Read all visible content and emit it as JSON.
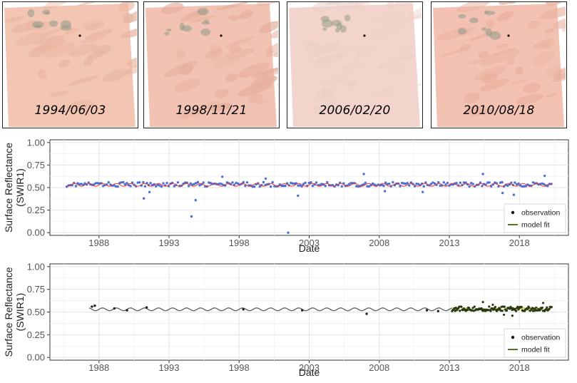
{
  "thumbnails": [
    {
      "date": "1994/06/03"
    },
    {
      "date": "1998/11/21"
    },
    {
      "date": "2006/02/20"
    },
    {
      "date": "2010/08/18"
    }
  ],
  "colors": {
    "observation_top": "#4a6fd6",
    "fit_top": "#d83a3a",
    "observation_bottom_early": "#222222",
    "observation_bottom_late": "#2a3a10",
    "fit_bottom": "#555555",
    "fit_bottom_late": "#c8c020",
    "legend_fit": "#3a6a10"
  },
  "chart_data": [
    {
      "type": "scatter",
      "xlabel": "Date",
      "ylabel_line1": "Surface Reflectance",
      "ylabel_line2": "(SWIR1)",
      "xlim": [
        1984.5,
        2021.5
      ],
      "ylim": [
        -0.03,
        1.03
      ],
      "x_ticks": [
        1988,
        1993,
        1998,
        2003,
        2008,
        2013,
        2018
      ],
      "x_tick_labels": [
        "1988",
        "1993",
        "1998",
        "2003",
        "2008",
        "2013",
        "2018"
      ],
      "y_ticks": [
        0.0,
        0.25,
        0.5,
        0.75,
        1.0
      ],
      "y_tick_labels": [
        "0.00",
        "0.25",
        "0.50",
        "0.75",
        "1.00"
      ],
      "grid": true,
      "legend": {
        "position": "bottom-right",
        "entries": [
          "observation",
          "model fit"
        ]
      },
      "observations": {
        "start": 1985.7,
        "end": 2020.3,
        "base": 0.535,
        "spread": 0.025
      },
      "outliers": [
        [
          1991.6,
          0.45
        ],
        [
          1991.2,
          0.38
        ],
        [
          1994.6,
          0.18
        ],
        [
          1994.9,
          0.36
        ],
        [
          1996.8,
          0.62
        ],
        [
          1999.9,
          0.6
        ],
        [
          2001.5,
          0.0
        ],
        [
          2002.2,
          0.41
        ],
        [
          2006.9,
          0.65
        ],
        [
          2015.4,
          0.65
        ],
        [
          2016.8,
          0.44
        ],
        [
          2017.6,
          0.42
        ],
        [
          2019.8,
          0.63
        ],
        [
          2008.4,
          0.46
        ],
        [
          2011.1,
          0.45
        ]
      ],
      "model_fit": {
        "mean": 0.53,
        "amplitude": 0.015,
        "period": 1.0
      }
    },
    {
      "type": "scatter",
      "xlabel": "Date",
      "ylabel_line1": "Surface Reflectance",
      "ylabel_line2": "(SWIR1)",
      "xlim": [
        1984.5,
        2021.5
      ],
      "ylim": [
        -0.03,
        1.03
      ],
      "x_ticks": [
        1988,
        1993,
        1998,
        2003,
        2008,
        2013,
        2018
      ],
      "x_tick_labels": [
        "1988",
        "1993",
        "1998",
        "2003",
        "2008",
        "2013",
        "2018"
      ],
      "y_ticks": [
        0.0,
        0.25,
        0.5,
        0.75,
        1.0
      ],
      "y_tick_labels": [
        "0.00",
        "0.25",
        "0.50",
        "0.75",
        "1.00"
      ],
      "grid": true,
      "legend": {
        "position": "bottom-right",
        "entries": [
          "observation",
          "model fit"
        ]
      },
      "sparse_observations": [
        [
          1987.5,
          0.56
        ],
        [
          1987.7,
          0.57
        ],
        [
          1989.1,
          0.54
        ],
        [
          1990.0,
          0.52
        ],
        [
          1991.4,
          0.55
        ],
        [
          1998.3,
          0.53
        ],
        [
          2002.5,
          0.52
        ],
        [
          2007.1,
          0.48
        ],
        [
          2011.4,
          0.52
        ],
        [
          2012.2,
          0.51
        ]
      ],
      "dense_observations": {
        "start": 2013.2,
        "end": 2020.3,
        "base": 0.535,
        "spread": 0.025
      },
      "model_fit": {
        "start": 1987.3,
        "end": 2020.3,
        "mean": 0.53,
        "amplitude": 0.015,
        "period": 1.0,
        "highlight_start": 2013.2
      }
    }
  ]
}
